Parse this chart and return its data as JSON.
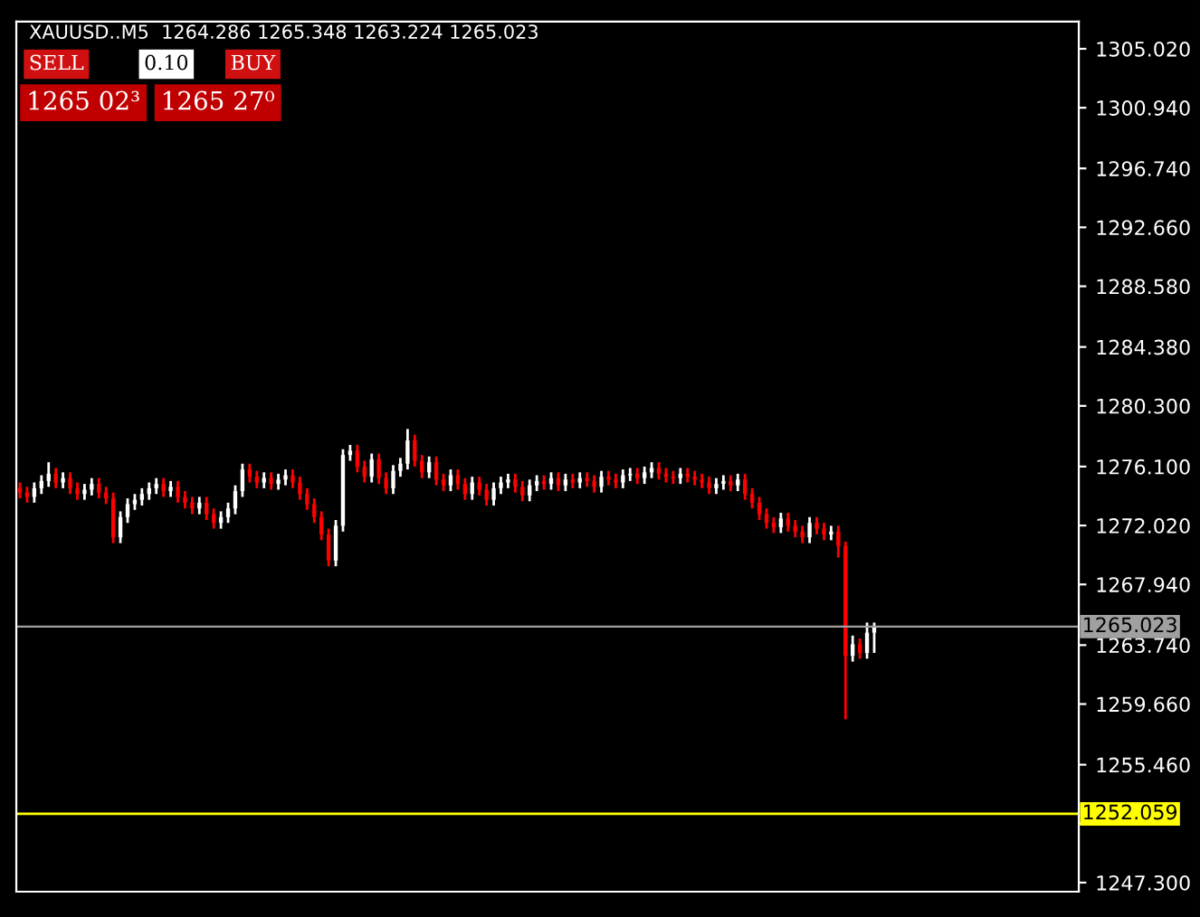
{
  "chart_data": {
    "type": "candlestick",
    "title": "XAUUSD..M5  1264.286 1265.348 1263.224 1265.023",
    "annotations": [
      "SELL",
      "0.10",
      "BUY",
      "1265 02³",
      "1265 27⁰"
    ],
    "categories": [
      null,
      null,
      null,
      null,
      null,
      null,
      null,
      null,
      null,
      null,
      null,
      null,
      null,
      null,
      null,
      null,
      null,
      null,
      null,
      null,
      null,
      null,
      null,
      null,
      null,
      null,
      null,
      null,
      null,
      null,
      null,
      null,
      null,
      null,
      null,
      null,
      null,
      null,
      null,
      null,
      null,
      null,
      null,
      null,
      null,
      null,
      null,
      null,
      null,
      null,
      null,
      null,
      null,
      null,
      null,
      null,
      null,
      null,
      null,
      null,
      null,
      null,
      null,
      null,
      null,
      null,
      null,
      null,
      null,
      null,
      null,
      null,
      null,
      null,
      null,
      null,
      null,
      null,
      null,
      null,
      null,
      null,
      null,
      null,
      null,
      null,
      null,
      null,
      null,
      null,
      null,
      null,
      null,
      null,
      null,
      null,
      null,
      null,
      null,
      null,
      null,
      null,
      null,
      null,
      null,
      null,
      null,
      null,
      null,
      null,
      null,
      null,
      null,
      null,
      null,
      null,
      null,
      null,
      null,
      null,
      null,
      null,
      null,
      null,
      null,
      null,
      null,
      null,
      null,
      null,
      null,
      null,
      null,
      null,
      null,
      null,
      null,
      null,
      null,
      null,
      null,
      null,
      null,
      null,
      null,
      null,
      null,
      null
    ],
    "ohlc": [
      [
        1274.6,
        1275.0,
        1273.9,
        1274.3
      ],
      [
        1274.3,
        1274.7,
        1273.6,
        1274.0
      ],
      [
        1274.0,
        1275.0,
        1273.6,
        1274.6
      ],
      [
        1274.6,
        1275.5,
        1274.2,
        1275.1
      ],
      [
        1275.1,
        1276.4,
        1274.7,
        1275.6
      ],
      [
        1275.6,
        1276.0,
        1274.6,
        1275.0
      ],
      [
        1275.0,
        1275.7,
        1274.6,
        1275.3
      ],
      [
        1275.3,
        1275.7,
        1274.2,
        1274.6
      ],
      [
        1274.6,
        1275.0,
        1273.8,
        1274.2
      ],
      [
        1274.2,
        1274.9,
        1273.8,
        1274.5
      ],
      [
        1274.5,
        1275.3,
        1274.1,
        1274.9
      ],
      [
        1274.9,
        1275.3,
        1273.9,
        1274.3
      ],
      [
        1274.3,
        1274.7,
        1273.5,
        1273.9
      ],
      [
        1273.9,
        1274.3,
        1270.8,
        1271.2
      ],
      [
        1271.2,
        1273.0,
        1270.8,
        1272.6
      ],
      [
        1272.6,
        1273.9,
        1272.2,
        1273.5
      ],
      [
        1273.5,
        1274.2,
        1273.1,
        1273.8
      ],
      [
        1273.8,
        1274.6,
        1273.4,
        1274.2
      ],
      [
        1274.2,
        1275.0,
        1273.8,
        1274.6
      ],
      [
        1274.6,
        1275.3,
        1274.2,
        1274.9
      ],
      [
        1274.9,
        1275.3,
        1274.0,
        1274.4
      ],
      [
        1274.4,
        1275.1,
        1274.0,
        1274.7
      ],
      [
        1274.7,
        1275.1,
        1273.6,
        1274.0
      ],
      [
        1274.0,
        1274.4,
        1273.2,
        1273.6
      ],
      [
        1273.6,
        1274.0,
        1272.8,
        1273.2
      ],
      [
        1273.2,
        1274.0,
        1272.8,
        1273.6
      ],
      [
        1273.6,
        1274.0,
        1272.4,
        1272.8
      ],
      [
        1272.8,
        1273.2,
        1271.8,
        1272.2
      ],
      [
        1272.2,
        1273.0,
        1271.8,
        1272.6
      ],
      [
        1272.6,
        1273.6,
        1272.2,
        1273.2
      ],
      [
        1273.2,
        1274.8,
        1272.8,
        1274.4
      ],
      [
        1274.4,
        1276.3,
        1274.0,
        1275.9
      ],
      [
        1275.9,
        1276.3,
        1275.0,
        1275.4
      ],
      [
        1275.4,
        1275.8,
        1274.6,
        1275.0
      ],
      [
        1275.0,
        1275.7,
        1274.6,
        1275.3
      ],
      [
        1275.3,
        1275.7,
        1274.5,
        1274.9
      ],
      [
        1274.9,
        1275.6,
        1274.5,
        1275.2
      ],
      [
        1275.2,
        1275.9,
        1274.8,
        1275.5
      ],
      [
        1275.5,
        1275.9,
        1274.6,
        1275.0
      ],
      [
        1275.0,
        1275.4,
        1273.8,
        1274.2
      ],
      [
        1274.2,
        1274.6,
        1273.1,
        1273.5
      ],
      [
        1273.5,
        1273.9,
        1272.2,
        1272.6
      ],
      [
        1272.6,
        1273.0,
        1271.0,
        1271.4
      ],
      [
        1271.4,
        1271.8,
        1269.2,
        1269.6
      ],
      [
        1269.6,
        1272.4,
        1269.2,
        1272.0
      ],
      [
        1272.0,
        1277.3,
        1271.6,
        1276.9
      ],
      [
        1276.9,
        1277.6,
        1276.5,
        1277.2
      ],
      [
        1277.2,
        1277.6,
        1275.7,
        1276.1
      ],
      [
        1276.1,
        1276.5,
        1275.0,
        1275.4
      ],
      [
        1275.4,
        1277.0,
        1275.0,
        1276.6
      ],
      [
        1276.6,
        1277.0,
        1274.9,
        1275.3
      ],
      [
        1275.3,
        1275.7,
        1274.2,
        1274.6
      ],
      [
        1274.6,
        1276.2,
        1274.2,
        1275.8
      ],
      [
        1275.8,
        1276.7,
        1275.4,
        1276.3
      ],
      [
        1276.3,
        1278.7,
        1275.9,
        1277.9
      ],
      [
        1277.9,
        1278.3,
        1276.1,
        1276.5
      ],
      [
        1276.5,
        1276.9,
        1275.3,
        1275.7
      ],
      [
        1275.7,
        1276.8,
        1275.3,
        1276.4
      ],
      [
        1276.4,
        1276.8,
        1274.8,
        1275.2
      ],
      [
        1275.2,
        1275.6,
        1274.4,
        1274.8
      ],
      [
        1274.8,
        1275.9,
        1274.4,
        1275.5
      ],
      [
        1275.5,
        1275.9,
        1274.5,
        1274.9
      ],
      [
        1274.9,
        1275.3,
        1273.8,
        1274.2
      ],
      [
        1274.2,
        1275.4,
        1273.8,
        1275.0
      ],
      [
        1275.0,
        1275.4,
        1274.1,
        1274.5
      ],
      [
        1274.5,
        1274.9,
        1273.4,
        1273.8
      ],
      [
        1273.8,
        1275.0,
        1273.4,
        1274.6
      ],
      [
        1274.6,
        1275.4,
        1274.2,
        1275.0
      ],
      [
        1275.0,
        1275.6,
        1274.6,
        1275.2
      ],
      [
        1275.2,
        1275.6,
        1274.3,
        1274.7
      ],
      [
        1274.7,
        1275.1,
        1273.7,
        1274.1
      ],
      [
        1274.1,
        1275.2,
        1273.7,
        1274.8
      ],
      [
        1274.8,
        1275.5,
        1274.4,
        1275.1
      ],
      [
        1275.1,
        1275.5,
        1274.5,
        1274.9
      ],
      [
        1274.9,
        1275.7,
        1274.5,
        1275.3
      ],
      [
        1275.3,
        1275.7,
        1274.4,
        1274.8
      ],
      [
        1274.8,
        1275.6,
        1274.4,
        1275.2
      ],
      [
        1275.2,
        1275.6,
        1274.6,
        1275.0
      ],
      [
        1275.0,
        1275.7,
        1274.6,
        1275.3
      ],
      [
        1275.3,
        1275.7,
        1274.7,
        1275.1
      ],
      [
        1275.1,
        1275.5,
        1274.3,
        1274.7
      ],
      [
        1274.7,
        1275.8,
        1274.3,
        1275.4
      ],
      [
        1275.4,
        1275.8,
        1274.8,
        1275.2
      ],
      [
        1275.2,
        1275.6,
        1274.6,
        1275.0
      ],
      [
        1275.0,
        1275.9,
        1274.6,
        1275.5
      ],
      [
        1275.5,
        1276.0,
        1275.1,
        1275.6
      ],
      [
        1275.6,
        1276.0,
        1274.9,
        1275.3
      ],
      [
        1275.3,
        1276.1,
        1274.9,
        1275.7
      ],
      [
        1275.7,
        1276.4,
        1275.3,
        1276.0
      ],
      [
        1276.0,
        1276.4,
        1275.2,
        1275.6
      ],
      [
        1275.6,
        1276.0,
        1275.0,
        1275.4
      ],
      [
        1275.4,
        1275.8,
        1274.9,
        1275.3
      ],
      [
        1275.3,
        1276.0,
        1274.9,
        1275.6
      ],
      [
        1275.6,
        1276.0,
        1275.0,
        1275.4
      ],
      [
        1275.4,
        1275.8,
        1274.8,
        1275.2
      ],
      [
        1275.2,
        1275.6,
        1274.6,
        1275.0
      ],
      [
        1275.0,
        1275.4,
        1274.2,
        1274.6
      ],
      [
        1274.6,
        1275.3,
        1274.2,
        1274.9
      ],
      [
        1274.9,
        1275.5,
        1274.5,
        1275.1
      ],
      [
        1275.1,
        1275.5,
        1274.4,
        1274.8
      ],
      [
        1274.8,
        1275.6,
        1274.4,
        1275.2
      ],
      [
        1275.2,
        1275.6,
        1273.8,
        1274.2
      ],
      [
        1274.2,
        1274.6,
        1273.2,
        1273.6
      ],
      [
        1273.6,
        1274.0,
        1272.4,
        1272.8
      ],
      [
        1272.8,
        1273.2,
        1271.8,
        1272.2
      ],
      [
        1272.2,
        1272.6,
        1271.5,
        1271.9
      ],
      [
        1271.9,
        1272.9,
        1271.5,
        1272.5
      ],
      [
        1272.5,
        1272.9,
        1271.6,
        1272.0
      ],
      [
        1272.0,
        1272.4,
        1271.2,
        1271.6
      ],
      [
        1271.6,
        1272.0,
        1270.8,
        1271.2
      ],
      [
        1271.2,
        1272.6,
        1270.8,
        1272.2
      ],
      [
        1272.2,
        1272.6,
        1271.4,
        1271.8
      ],
      [
        1271.8,
        1272.2,
        1271.0,
        1271.4
      ],
      [
        1271.4,
        1272.0,
        1271.0,
        1271.6
      ],
      [
        1271.6,
        1272.0,
        1269.8,
        1270.6
      ],
      [
        1270.6,
        1270.9,
        1258.6,
        1263.0
      ],
      [
        1263.0,
        1264.4,
        1262.6,
        1263.8
      ],
      [
        1263.8,
        1264.2,
        1262.8,
        1263.2
      ],
      [
        1263.2,
        1265.3,
        1262.8,
        1264.6
      ],
      [
        1264.6,
        1265.3,
        1263.2,
        1265.0
      ],
      null,
      null,
      null,
      null,
      null,
      null,
      null,
      null,
      null,
      null,
      null,
      null,
      null,
      null,
      null,
      null,
      null,
      null,
      null,
      null,
      null,
      null,
      null,
      null,
      null,
      null,
      null,
      null
    ],
    "ylim": [
      1246.67,
      1306.9
    ],
    "yticks": [
      {
        "value": 1247.3,
        "label": "1247.300"
      },
      {
        "value": 1251.38,
        "label": null
      },
      {
        "value": 1255.46,
        "label": "1255.460"
      },
      {
        "value": 1259.66,
        "label": "1259.660"
      },
      {
        "value": 1263.74,
        "label": "1263.740"
      },
      {
        "value": 1267.94,
        "label": "1267.940"
      },
      {
        "value": 1272.02,
        "label": "1272.020"
      },
      {
        "value": 1276.1,
        "label": "1276.100"
      },
      {
        "value": 1280.3,
        "label": "1280.300"
      },
      {
        "value": 1284.38,
        "label": "1284.380"
      },
      {
        "value": 1288.58,
        "label": "1288.580"
      },
      {
        "value": 1292.66,
        "label": "1292.660"
      },
      {
        "value": 1296.74,
        "label": "1296.740"
      },
      {
        "value": 1300.94,
        "label": "1300.940"
      },
      {
        "value": 1305.02,
        "label": "1305.020"
      }
    ],
    "ref_lines": [
      {
        "axis": "y",
        "value": 1265.023,
        "label": "1265.023",
        "color": "#a0a0a0"
      },
      {
        "axis": "y",
        "value": 1252.059,
        "label": "1252.059",
        "color": "#ffff00"
      }
    ],
    "grid": false
  }
}
